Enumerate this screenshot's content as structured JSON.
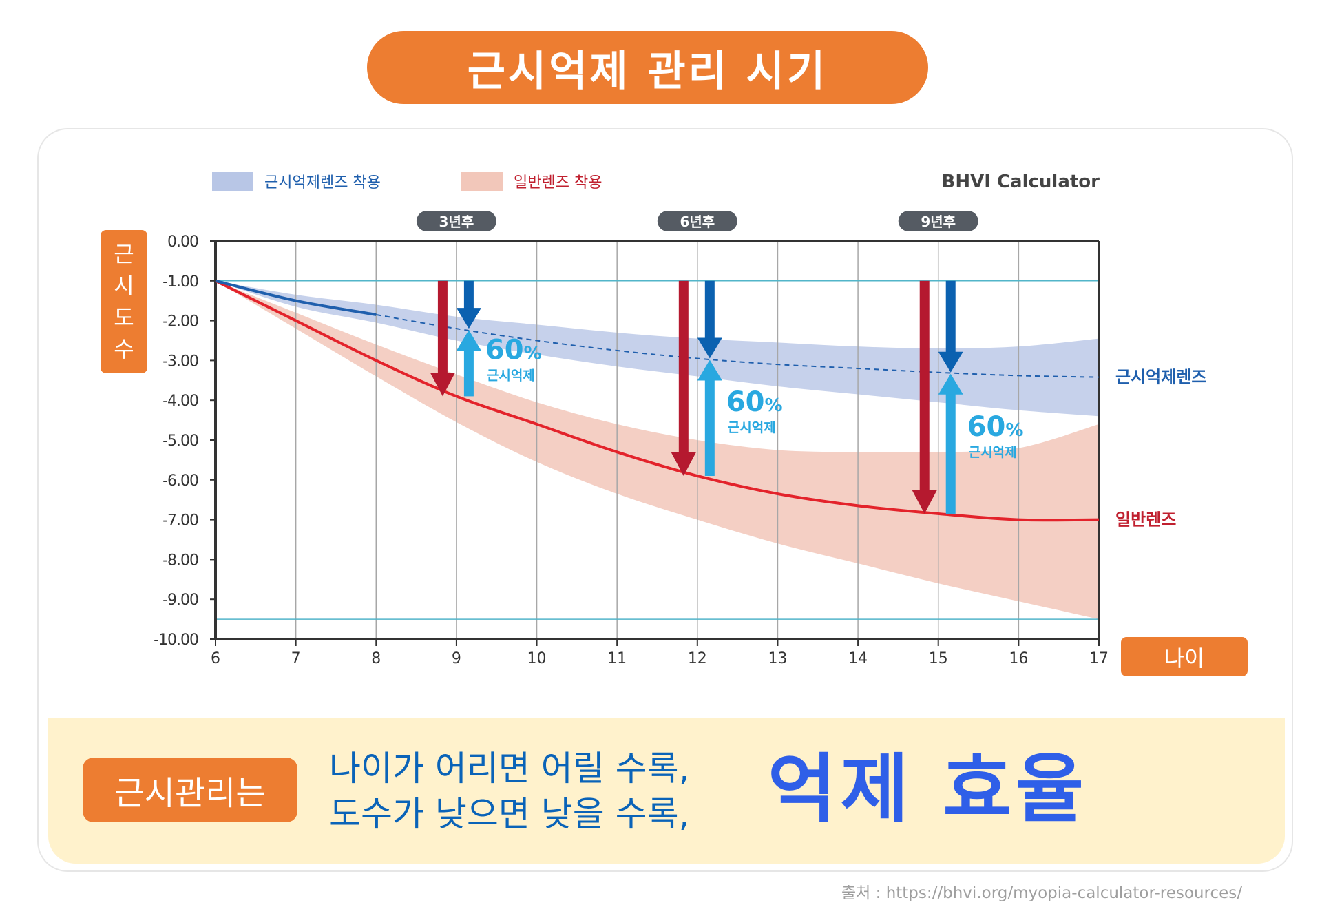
{
  "title": "근시억제 관리 시기",
  "chart_data": {
    "type": "line",
    "watermark": "BHVI Calculator",
    "xlabel": "나이",
    "ylabel": "근시도수",
    "xlim": [
      6,
      17
    ],
    "ylim": [
      -10,
      0
    ],
    "x_ticks": [
      "6",
      "7",
      "8",
      "9",
      "10",
      "11",
      "12",
      "13",
      "14",
      "15",
      "16",
      "17"
    ],
    "y_ticks": [
      "0.00",
      "-1.00",
      "-2.00",
      "-3.00",
      "-4.00",
      "-5.00",
      "-6.00",
      "-7.00",
      "-8.00",
      "-9.00",
      "-10.00"
    ],
    "grid": true,
    "legend_position": "top-left",
    "reference_lines": [
      -1.0,
      -9.5
    ],
    "series": [
      {
        "name": "근시억제렌즈",
        "legend": "근시억제렌즈 착용",
        "color": "#1f5fad",
        "band_color": "#b8c6e6",
        "x": [
          6,
          7,
          8,
          9,
          10,
          11,
          12,
          13,
          14,
          15,
          16,
          17
        ],
        "y": [
          -1.0,
          -1.5,
          -1.85,
          -2.2,
          -2.5,
          -2.75,
          -2.95,
          -3.1,
          -3.2,
          -3.3,
          -3.38,
          -3.42
        ],
        "solid_until": 8,
        "band_upper": [
          -1.0,
          -1.35,
          -1.6,
          -1.9,
          -2.1,
          -2.3,
          -2.45,
          -2.55,
          -2.65,
          -2.7,
          -2.65,
          -2.45
        ],
        "band_lower": [
          -1.0,
          -1.65,
          -2.05,
          -2.5,
          -2.85,
          -3.15,
          -3.4,
          -3.65,
          -3.85,
          -4.05,
          -4.25,
          -4.4
        ]
      },
      {
        "name": "일반렌즈",
        "legend": "일반렌즈 착용",
        "color": "#e3232b",
        "band_color": "#f2c7ba",
        "x": [
          6,
          7,
          8,
          9,
          10,
          11,
          12,
          13,
          14,
          15,
          16,
          17
        ],
        "y": [
          -1.0,
          -2.0,
          -3.0,
          -3.9,
          -4.6,
          -5.3,
          -5.9,
          -6.35,
          -6.65,
          -6.85,
          -7.0,
          -7.0
        ],
        "band_upper": [
          -1.0,
          -1.8,
          -2.6,
          -3.35,
          -4.05,
          -4.6,
          -5.0,
          -5.25,
          -5.3,
          -5.3,
          -5.2,
          -4.6
        ],
        "band_lower": [
          -1.0,
          -2.2,
          -3.4,
          -4.55,
          -5.55,
          -6.35,
          -7.0,
          -7.6,
          -8.1,
          -8.6,
          -9.05,
          -9.5
        ]
      }
    ],
    "annotations": [
      {
        "tag": "3년후",
        "x": 9,
        "from": -1.0,
        "regular_to": -3.9,
        "control_to": -2.2,
        "percent": "60",
        "percent_sign": "%",
        "label": "근시억제"
      },
      {
        "tag": "6년후",
        "x": 12,
        "from": -1.0,
        "regular_to": -5.9,
        "control_to": -2.95,
        "percent": "60",
        "percent_sign": "%",
        "label": "근시억제"
      },
      {
        "tag": "9년후",
        "x": 15,
        "from": -1.0,
        "regular_to": -6.85,
        "control_to": -3.3,
        "percent": "60",
        "percent_sign": "%",
        "label": "근시억제"
      }
    ]
  },
  "ylabel_chars": [
    "근",
    "시",
    "도",
    "수"
  ],
  "bottom": {
    "pill": "근시관리는",
    "line1": "나이가 어리면 어릴 수록,",
    "line2": "도수가 낮으면 낮을 수록,",
    "big": "억제 효율"
  },
  "source": "출처 : https://bhvi.org/myopia-calculator-resources/",
  "colors": {
    "accent": "#ed7d31",
    "control_arrow": "#0b61b0",
    "control_light_arrow": "#29a8e0",
    "regular_arrow": "#b5192f"
  }
}
